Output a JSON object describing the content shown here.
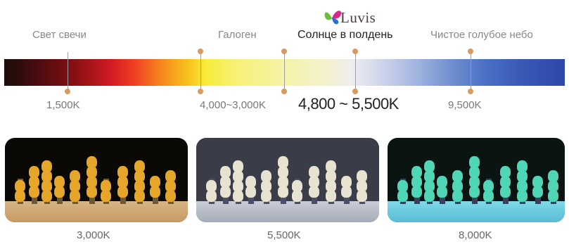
{
  "logo": {
    "text": "Luvis"
  },
  "scale": {
    "top_labels": [
      "Свет свечи",
      "Галоген",
      "Солнце в полдень",
      "Чистое голубое небо"
    ],
    "bottom_labels": [
      "1,500K",
      "4,000~3,000K",
      "4,800 ~ 5,500K",
      "9,500K"
    ]
  },
  "samples": [
    {
      "caption": "3,000K",
      "tone": "warm"
    },
    {
      "caption": "5,500K",
      "tone": "neutral"
    },
    {
      "caption": "8,000K",
      "tone": "cool"
    }
  ],
  "colors": {
    "marker": "#d69a62",
    "warm_tooth": "#e6a62a",
    "neutral_tooth": "#e8e2d0",
    "cool_tooth": "#4fd6b6"
  }
}
